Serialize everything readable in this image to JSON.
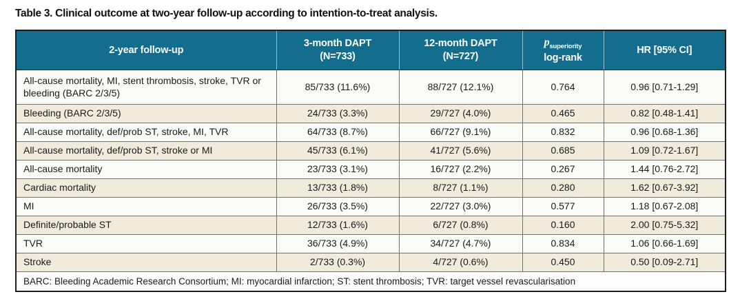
{
  "title": "Table 3. Clinical outcome at two-year follow-up according to intention-to-treat analysis.",
  "colors": {
    "header_background": "#136e8e",
    "header_text": "#ffffff",
    "row_white": "#fbfbf8",
    "row_beige": "#f0ebdb",
    "inner_border": "#72726a",
    "outer_border": "#1d1d1b",
    "header_divider": "#9fc2cf",
    "body_text": "#1a1a1a"
  },
  "table": {
    "header": {
      "col1": "2-year follow-up",
      "col2_line1": "3-month DAPT",
      "col2_line2": "(N=733)",
      "col3_line1": "12-month DAPT",
      "col3_line2": "(N=727)",
      "p_symbol": "p",
      "p_subscript": "superiority",
      "p_line2": "log-rank",
      "col5": "HR [95% CI]"
    },
    "rows": [
      {
        "outcome": "All-cause mortality, MI, stent thrombosis, stroke, TVR or bleeding (BARC 2/3/5)",
        "dapt3": "85/733 (11.6%)",
        "dapt12": "88/727 (12.1%)",
        "p": "0.764",
        "hr": "0.96 [0.71-1.29]"
      },
      {
        "outcome": "Bleeding (BARC 2/3/5)",
        "dapt3": "24/733 (3.3%)",
        "dapt12": "29/727 (4.0%)",
        "p": "0.465",
        "hr": "0.82 [0.48-1.41]"
      },
      {
        "outcome": "All-cause mortality, def/prob ST, stroke, MI, TVR",
        "dapt3": "64/733 (8.7%)",
        "dapt12": "66/727 (9.1%)",
        "p": "0.832",
        "hr": "0.96 [0.68-1.36]"
      },
      {
        "outcome": "All-cause mortality, def/prob ST, stroke or MI",
        "dapt3": "45/733 (6.1%)",
        "dapt12": "41/727 (5.6%)",
        "p": "0.685",
        "hr": "1.09 [0.72-1.67]"
      },
      {
        "outcome": "All-cause mortality",
        "dapt3": "23/733 (3.1%)",
        "dapt12": "16/727 (2.2%)",
        "p": "0.267",
        "hr": "1.44 [0.76-2.72]"
      },
      {
        "outcome": "Cardiac mortality",
        "dapt3": "13/733 (1.8%)",
        "dapt12": "8/727 (1.1%)",
        "p": "0.280",
        "hr": "1.62 [0.67-3.92]"
      },
      {
        "outcome": "MI",
        "dapt3": "26/733 (3.5%)",
        "dapt12": "22/727 (3.0%)",
        "p": "0.577",
        "hr": "1.18 [0.67-2.08]"
      },
      {
        "outcome": "Definite/probable ST",
        "dapt3": "12/733 (1.6%)",
        "dapt12": "6/727 (0.8%)",
        "p": "0.160",
        "hr": "2.00 [0.75-5.32]"
      },
      {
        "outcome": "TVR",
        "dapt3": "36/733 (4.9%)",
        "dapt12": "34/727 (4.7%)",
        "p": "0.834",
        "hr": "1.06 [0.66-1.69]"
      },
      {
        "outcome": "Stroke",
        "dapt3": "2/733 (0.3%)",
        "dapt12": "4/727 (0.6%)",
        "p": "0.450",
        "hr": "0.50 [0.09-2.71]"
      }
    ],
    "footnote": "BARC: Bleeding Academic Research Consortium; MI: myocardial infarction; ST: stent thrombosis; TVR: target vessel revascularisation"
  }
}
